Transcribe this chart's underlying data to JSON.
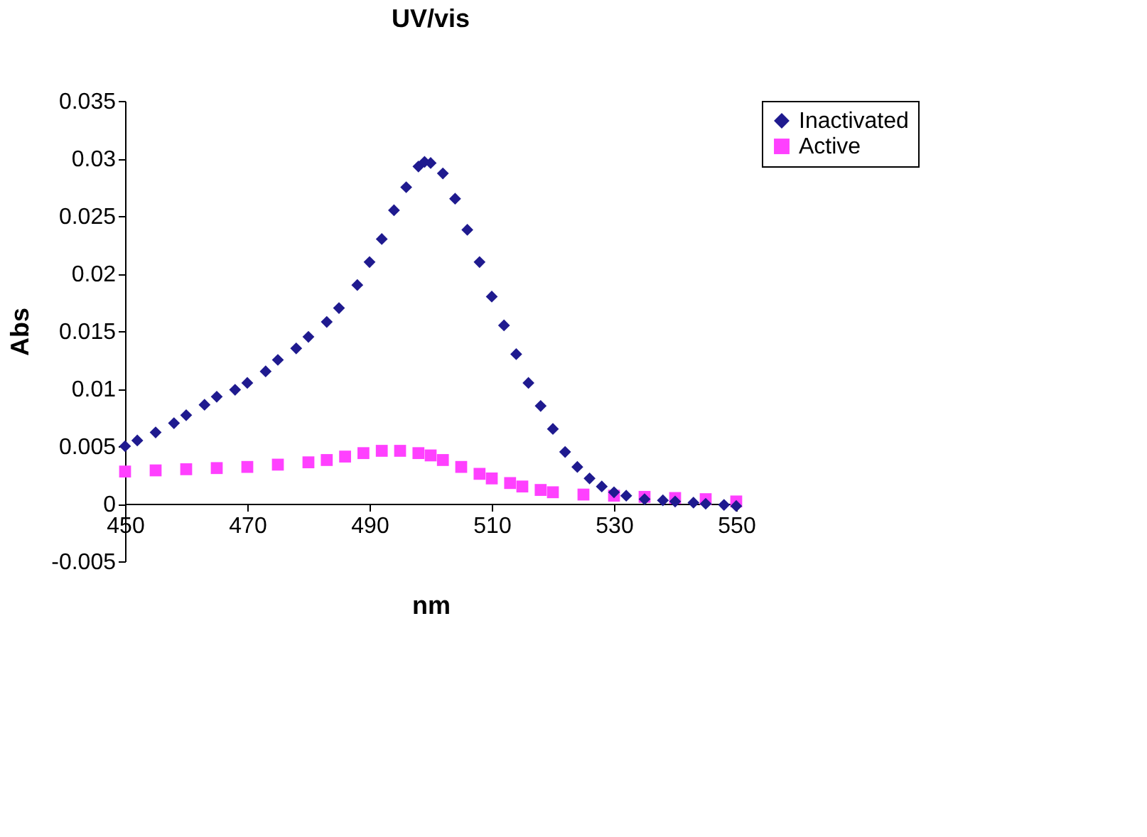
{
  "chart_data": {
    "type": "scatter",
    "title": "UV/vis",
    "xlabel": "nm",
    "ylabel": "Abs",
    "xlim": [
      450,
      550
    ],
    "xticks": [
      450,
      470,
      490,
      510,
      530,
      550
    ],
    "ylim": [
      -0.005,
      0.035
    ],
    "yticks": [
      -0.005,
      0,
      0.005,
      0.01,
      0.015,
      0.02,
      0.025,
      0.03,
      0.035
    ],
    "grid": false,
    "legend": "right",
    "series": [
      {
        "name": "Inactivated",
        "color": "#1f1a8f",
        "marker": "diamond",
        "x": [
          450,
          452,
          455,
          458,
          460,
          463,
          465,
          468,
          470,
          473,
          475,
          478,
          480,
          483,
          485,
          488,
          490,
          492,
          494,
          496,
          498,
          499,
          500,
          502,
          504,
          506,
          508,
          510,
          512,
          514,
          516,
          518,
          520,
          522,
          524,
          526,
          528,
          530,
          532,
          535,
          538,
          540,
          543,
          545,
          548,
          550
        ],
        "values": [
          0.005,
          0.0055,
          0.0062,
          0.007,
          0.0077,
          0.0086,
          0.0093,
          0.0099,
          0.0105,
          0.0115,
          0.0125,
          0.0135,
          0.0145,
          0.0158,
          0.017,
          0.019,
          0.021,
          0.023,
          0.0255,
          0.0275,
          0.0293,
          0.0297,
          0.0296,
          0.0287,
          0.0265,
          0.0238,
          0.021,
          0.018,
          0.0155,
          0.013,
          0.0105,
          0.0085,
          0.0065,
          0.0045,
          0.0032,
          0.0022,
          0.0015,
          0.001,
          0.0007,
          0.0004,
          0.0003,
          0.0002,
          0.0001,
          0.0,
          -0.0001,
          -0.0002
        ]
      },
      {
        "name": "Active",
        "color": "#ff40ff",
        "marker": "square",
        "x": [
          450,
          455,
          460,
          465,
          470,
          475,
          480,
          483,
          486,
          489,
          492,
          495,
          498,
          500,
          502,
          505,
          508,
          510,
          513,
          515,
          518,
          520,
          525,
          530,
          535,
          540,
          545,
          550
        ],
        "values": [
          0.0028,
          0.0029,
          0.003,
          0.0031,
          0.0032,
          0.0034,
          0.0036,
          0.0038,
          0.0041,
          0.0044,
          0.0046,
          0.0046,
          0.0044,
          0.0042,
          0.0038,
          0.0032,
          0.0026,
          0.0022,
          0.0018,
          0.0015,
          0.0012,
          0.001,
          0.0008,
          0.0007,
          0.0006,
          0.0005,
          0.0004,
          0.0002
        ]
      }
    ]
  }
}
